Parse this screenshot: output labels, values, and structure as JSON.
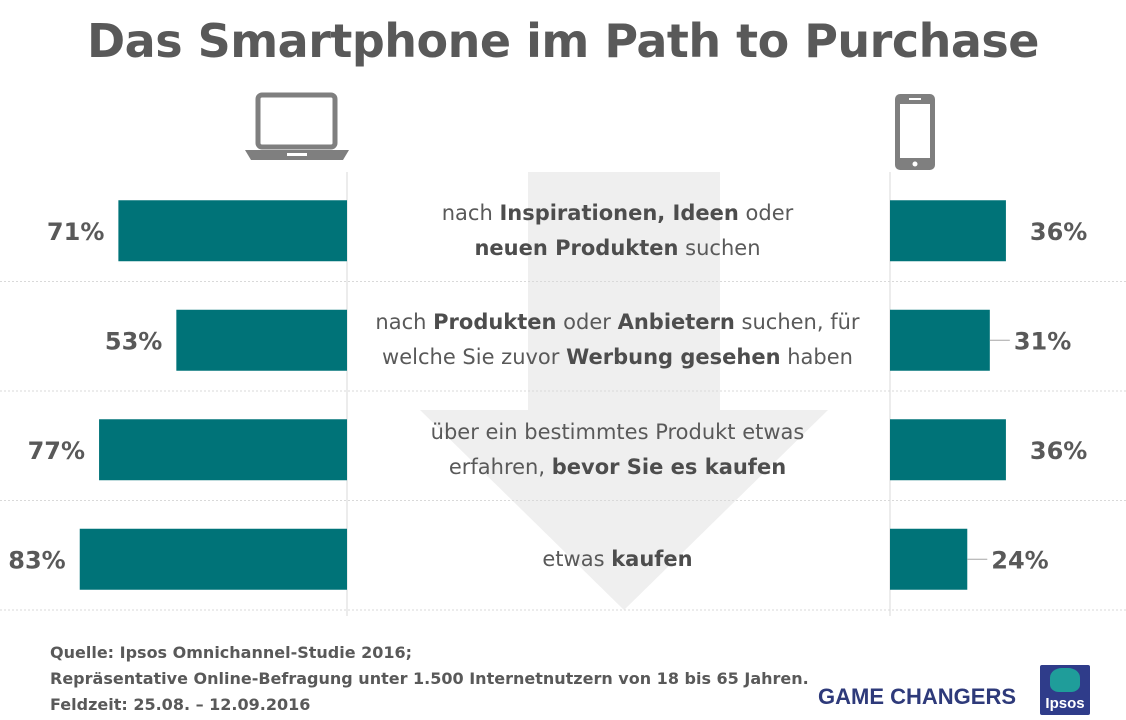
{
  "title": "Das Smartphone im Path to Purchase",
  "devices": {
    "left": {
      "icon": "laptop-icon"
    },
    "right": {
      "icon": "smartphone-icon"
    }
  },
  "colors": {
    "bar": "#007378",
    "text": "#595959",
    "arrow": "#efefef",
    "divider": "#d9d9d9",
    "brand": "#2e3a7a",
    "logo_bg": "#2f3c8a",
    "logo_accent": "#1f9d9a"
  },
  "chart_data": {
    "type": "bar",
    "unit": "%",
    "categories": [
      "nach Inspirationen, Ideen oder neuen Produkten suchen",
      "nach Produkten oder Anbietern suchen, für welche Sie zuvor Werbung gesehen haben",
      "über ein bestimmtes Produkt etwas erfahren, bevor Sie es kaufen",
      "etwas kaufen"
    ],
    "series": [
      {
        "device": "laptop",
        "values": [
          71,
          53,
          77,
          83
        ],
        "labels": [
          "71%",
          "53%",
          "77%",
          "83%"
        ]
      },
      {
        "device": "smartphone",
        "values": [
          36,
          31,
          36,
          24
        ],
        "labels": [
          "36%",
          "31%",
          "36%",
          "24%"
        ]
      }
    ],
    "rows": [
      {
        "lines": [
          [
            {
              "t": "nach ",
              "b": false
            },
            {
              "t": "Inspirationen, Ideen",
              "b": true
            },
            {
              "t": " oder",
              "b": false
            }
          ],
          [
            {
              "t": "neuen Produkten",
              "b": true
            },
            {
              "t": " suchen",
              "b": false
            }
          ]
        ]
      },
      {
        "lines": [
          [
            {
              "t": "nach ",
              "b": false
            },
            {
              "t": "Produkten",
              "b": true
            },
            {
              "t": " oder ",
              "b": false
            },
            {
              "t": "Anbietern",
              "b": true
            },
            {
              "t": " suchen, für",
              "b": false
            }
          ],
          [
            {
              "t": "welche Sie zuvor ",
              "b": false
            },
            {
              "t": "Werbung gesehen",
              "b": true
            },
            {
              "t": " haben",
              "b": false
            }
          ]
        ]
      },
      {
        "lines": [
          [
            {
              "t": "über ein bestimmtes Produkt etwas",
              "b": false
            }
          ],
          [
            {
              "t": "erfahren, ",
              "b": false
            },
            {
              "t": "bevor Sie es kaufen",
              "b": true
            }
          ]
        ]
      },
      {
        "lines": [
          [
            {
              "t": "etwas ",
              "b": false
            },
            {
              "t": "kaufen",
              "b": true
            }
          ]
        ]
      }
    ]
  },
  "source": {
    "line1": "Quelle: Ipsos Omnichannel-Studie 2016;",
    "line2": "Repräsentative Online-Befragung unter 1.500 Internetnutzern von 18 bis 65 Jahren.",
    "line3": "Feldzeit: 25.08. – 12.09.2016"
  },
  "brand": {
    "tagline": "GAME CHANGERS",
    "logo_text": "Ipsos",
    "logo_icon": "ipsos-logo-icon"
  }
}
